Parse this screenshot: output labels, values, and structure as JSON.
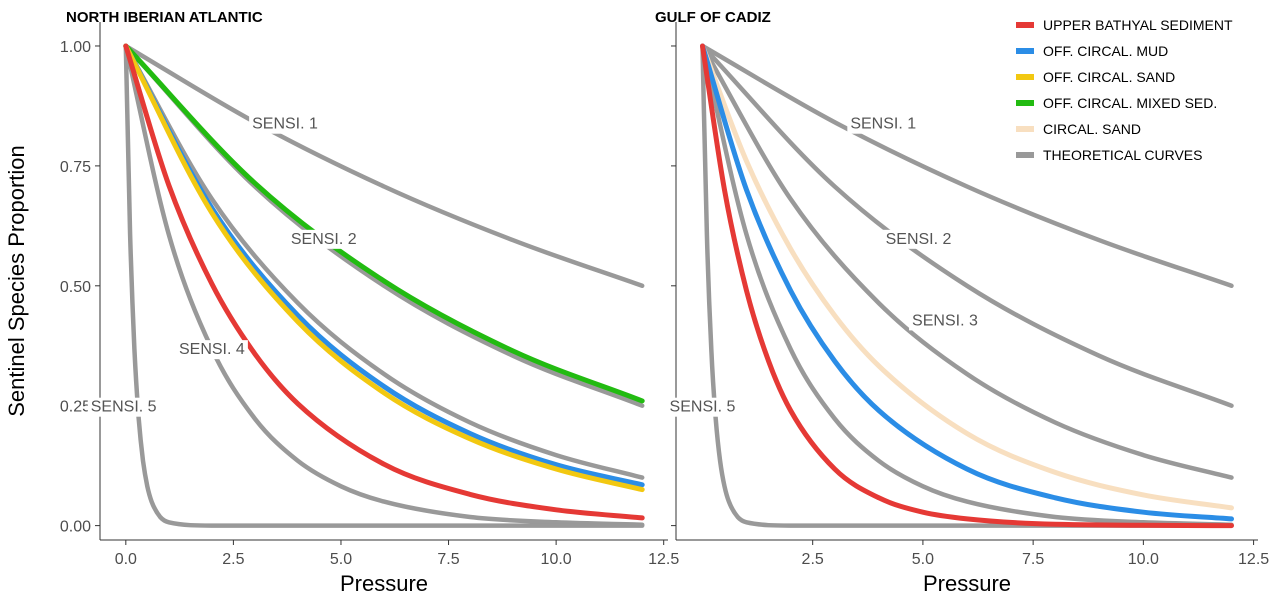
{
  "chart_data": [
    {
      "type": "line",
      "title": "NORTH IBERIAN ATLANTIC",
      "xlabel": "Pressure",
      "ylabel": "Sentinel Species Proportion",
      "xlim": [
        -0.6,
        12.6
      ],
      "ylim": [
        -0.03,
        1.05
      ],
      "xticks": [
        "0.0",
        "2.5",
        "5.0",
        "7.5",
        "10.0",
        "12.5"
      ],
      "yticks": [
        "0.00",
        "0.25",
        "0.50",
        "0.75",
        "1.00"
      ],
      "series": [
        {
          "key": "theoretical",
          "name": "SENSI. 1",
          "color": "#999999",
          "x": [
            0,
            3,
            6,
            9,
            12
          ],
          "y": [
            1.0,
            0.841,
            0.707,
            0.595,
            0.5
          ]
        },
        {
          "key": "theoretical",
          "name": "SENSI. 2",
          "color": "#999999",
          "x": [
            0,
            3,
            6,
            9,
            12
          ],
          "y": [
            1.0,
            0.707,
            0.5,
            0.354,
            0.25
          ]
        },
        {
          "key": "theoretical",
          "name": "SENSI. 3",
          "color": "#999999",
          "x": [
            0,
            2,
            4,
            6,
            8,
            10,
            12
          ],
          "y": [
            1.0,
            0.681,
            0.464,
            0.316,
            0.215,
            0.147,
            0.1
          ]
        },
        {
          "key": "theoretical",
          "name": "SENSI. 4",
          "color": "#999999",
          "x": [
            0,
            1,
            2,
            3,
            4,
            5,
            6,
            8,
            10,
            12
          ],
          "y": [
            1.0,
            0.607,
            0.368,
            0.223,
            0.135,
            0.082,
            0.05,
            0.018,
            0.007,
            0.002
          ]
        },
        {
          "key": "theoretical",
          "name": "SENSI. 5",
          "color": "#999999",
          "x": [
            0,
            0.1,
            0.2,
            0.3,
            0.4,
            0.5,
            0.6,
            0.8,
            1,
            2,
            12
          ],
          "y": [
            1.0,
            0.607,
            0.368,
            0.223,
            0.135,
            0.082,
            0.05,
            0.018,
            0.007,
            0.0,
            0.0
          ]
        },
        {
          "key": "off_circ_mixed",
          "color": "#22bb11",
          "x": [
            0,
            3,
            6,
            9,
            12
          ],
          "y": [
            1.0,
            0.714,
            0.51,
            0.364,
            0.26
          ]
        },
        {
          "key": "off_circ_mud",
          "color": "#2b8de6",
          "x": [
            0,
            2,
            4,
            6,
            8,
            10,
            12
          ],
          "y": [
            1.0,
            0.662,
            0.438,
            0.29,
            0.192,
            0.127,
            0.085
          ]
        },
        {
          "key": "off_circ_sand",
          "color": "#f2c811",
          "x": [
            0,
            2,
            4,
            6,
            8,
            10,
            12
          ],
          "y": [
            1.0,
            0.652,
            0.425,
            0.277,
            0.181,
            0.118,
            0.075
          ]
        },
        {
          "key": "upper_bathyal",
          "color": "#e53935",
          "x": [
            0,
            1,
            2,
            3,
            4,
            6,
            8,
            10,
            12
          ],
          "y": [
            1.0,
            0.71,
            0.504,
            0.358,
            0.254,
            0.128,
            0.065,
            0.033,
            0.016
          ]
        }
      ],
      "labels": [
        {
          "text": "SENSI. 1",
          "x": 3.7,
          "y": 0.84
        },
        {
          "text": "SENSI. 2",
          "x": 4.6,
          "y": 0.6
        },
        {
          "text": "SENSI. 4",
          "x": 2.0,
          "y": 0.37
        },
        {
          "text": "SENSI. 5",
          "x": -0.05,
          "y": 0.25
        }
      ]
    },
    {
      "type": "line",
      "title": "GULF OF CADIZ",
      "xlabel": "Pressure",
      "ylabel": "",
      "xlim": [
        -0.6,
        12.6
      ],
      "ylim": [
        -0.03,
        1.05
      ],
      "xticks": [
        "2.5",
        "5.0",
        "7.5",
        "10.0",
        "12.5"
      ],
      "yticks": [],
      "series": [
        {
          "key": "theoretical",
          "name": "SENSI. 1",
          "color": "#999999",
          "x": [
            0,
            3,
            6,
            9,
            12
          ],
          "y": [
            1.0,
            0.841,
            0.707,
            0.595,
            0.5
          ]
        },
        {
          "key": "theoretical",
          "name": "SENSI. 2",
          "color": "#999999",
          "x": [
            0,
            3,
            6,
            9,
            12
          ],
          "y": [
            1.0,
            0.707,
            0.5,
            0.354,
            0.25
          ]
        },
        {
          "key": "theoretical",
          "name": "SENSI. 3",
          "color": "#999999",
          "x": [
            0,
            2,
            4,
            6,
            8,
            10,
            12
          ],
          "y": [
            1.0,
            0.681,
            0.464,
            0.316,
            0.215,
            0.147,
            0.1
          ]
        },
        {
          "key": "theoretical",
          "name": "SENSI. 4",
          "color": "#999999",
          "x": [
            0,
            1,
            2,
            3,
            4,
            5,
            6,
            8,
            10,
            12
          ],
          "y": [
            1.0,
            0.607,
            0.368,
            0.223,
            0.135,
            0.082,
            0.05,
            0.018,
            0.007,
            0.002
          ]
        },
        {
          "key": "theoretical",
          "name": "SENSI. 5",
          "color": "#999999",
          "x": [
            0,
            0.1,
            0.2,
            0.3,
            0.4,
            0.5,
            0.6,
            0.8,
            1,
            2,
            12
          ],
          "y": [
            1.0,
            0.607,
            0.368,
            0.223,
            0.135,
            0.082,
            0.05,
            0.018,
            0.007,
            0.0,
            0.0
          ]
        },
        {
          "key": "circ_sand",
          "color": "#f8dfc0",
          "x": [
            0,
            1,
            2,
            3,
            4,
            6,
            8,
            10,
            12
          ],
          "y": [
            1.0,
            0.76,
            0.577,
            0.438,
            0.333,
            0.192,
            0.111,
            0.064,
            0.037
          ]
        },
        {
          "key": "off_circ_mud",
          "color": "#2b8de6",
          "x": [
            0,
            1,
            2,
            3,
            4,
            6,
            8,
            10,
            12
          ],
          "y": [
            1.0,
            0.7,
            0.49,
            0.343,
            0.24,
            0.118,
            0.058,
            0.028,
            0.014
          ]
        },
        {
          "key": "upper_bathyal",
          "color": "#e53935",
          "x": [
            0,
            0.5,
            1,
            1.5,
            2,
            3,
            4,
            5,
            6,
            8,
            12
          ],
          "y": [
            1.0,
            0.7,
            0.49,
            0.343,
            0.24,
            0.118,
            0.058,
            0.028,
            0.014,
            0.003,
            0.0
          ]
        }
      ],
      "labels": [
        {
          "text": "SENSI. 1",
          "x": 4.1,
          "y": 0.84
        },
        {
          "text": "SENSI. 2",
          "x": 4.9,
          "y": 0.6
        },
        {
          "text": "SENSI. 3",
          "x": 5.5,
          "y": 0.43
        },
        {
          "text": "SENSI. 5",
          "x": 0.0,
          "y": 0.25
        }
      ]
    }
  ],
  "legend": {
    "placement": "top-right",
    "items": [
      {
        "label": "UPPER BATHYAL SEDIMENT",
        "color": "#e53935"
      },
      {
        "label": "OFF. CIRCAL. MUD",
        "color": "#2b8de6"
      },
      {
        "label": "OFF. CIRCAL. SAND",
        "color": "#f2c811"
      },
      {
        "label": "OFF. CIRCAL. MIXED SED.",
        "color": "#22bb11"
      },
      {
        "label": "CIRCAL. SAND",
        "color": "#f8dfc0"
      },
      {
        "label": "THEORETICAL CURVES",
        "color": "#999999"
      }
    ]
  }
}
